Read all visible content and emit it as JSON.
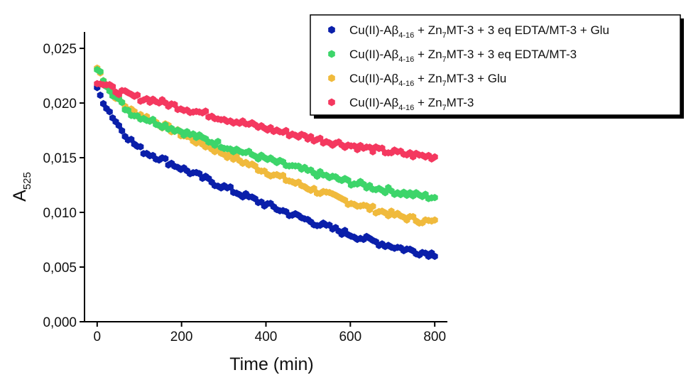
{
  "chart_data": {
    "type": "scatter",
    "xlabel": "Time (min)",
    "ylabel": {
      "main": "A",
      "sub": "525"
    },
    "xlim": [
      -30,
      830
    ],
    "ylim": [
      0,
      0.0265
    ],
    "xticks": [
      {
        "value": 0,
        "label": "0"
      },
      {
        "value": 200,
        "label": "200"
      },
      {
        "value": 400,
        "label": "400"
      },
      {
        "value": 600,
        "label": "600"
      },
      {
        "value": 800,
        "label": "800"
      }
    ],
    "yticks": [
      {
        "value": 0.0,
        "label": "0,000"
      },
      {
        "value": 0.005,
        "label": "0,005"
      },
      {
        "value": 0.01,
        "label": "0,010"
      },
      {
        "value": 0.015,
        "label": "0,015"
      },
      {
        "value": 0.02,
        "label": "0,020"
      },
      {
        "value": 0.025,
        "label": "0,025"
      }
    ],
    "grid": false,
    "legend_position": "top-right",
    "series": [
      {
        "name": "Cu(II)-Aβ4-16 + Zn7MT-3 + 3 eq EDTA/MT-3 + Glu",
        "legend": [
          "Cu(II)-Aβ",
          "4-16",
          " + Zn",
          "7",
          "MT-3 + 3 eq EDTA/MT-3 + Glu"
        ],
        "color": "#0a1faa",
        "start": 0.0212,
        "mid": 0.0153,
        "end": 0.0062,
        "x_start": 0,
        "x_mid": 130,
        "x_end": 800,
        "x": [
          0,
          800
        ]
      },
      {
        "name": "Cu(II)-Aβ4-16 + Zn7MT-3 + 3 eq EDTA/MT-3",
        "legend": [
          "Cu(II)-Aβ",
          "4-16",
          " + Zn",
          "7",
          "MT-3 + 3 eq EDTA/MT-3"
        ],
        "color": "#3dd56a",
        "start": 0.0232,
        "mid": 0.0188,
        "end": 0.0114,
        "x_start": 0,
        "x_mid": 100,
        "x_end": 800,
        "x": [
          0,
          800
        ]
      },
      {
        "name": "Cu(II)-Aβ4-16 + Zn7MT-3 + Glu",
        "legend": [
          "Cu(II)-Aβ",
          "4-16",
          " + Zn",
          "7",
          "MT-3 + Glu"
        ],
        "color": "#f0ba3c",
        "start": 0.0232,
        "mid": 0.019,
        "end": 0.0091,
        "x_start": 0,
        "x_mid": 100,
        "x_end": 800,
        "x": [
          0,
          800
        ]
      },
      {
        "name": "Cu(II)-Aβ4-16 + Zn7MT-3",
        "legend": [
          "Cu(II)-Aβ",
          "4-16",
          " + Zn",
          "7",
          "MT-3"
        ],
        "color": "#f4385f",
        "start": 0.022,
        "mid": 0.0203,
        "end": 0.0151,
        "x_start": 0,
        "x_mid": 130,
        "x_end": 800,
        "x": [
          0,
          800
        ]
      }
    ]
  }
}
